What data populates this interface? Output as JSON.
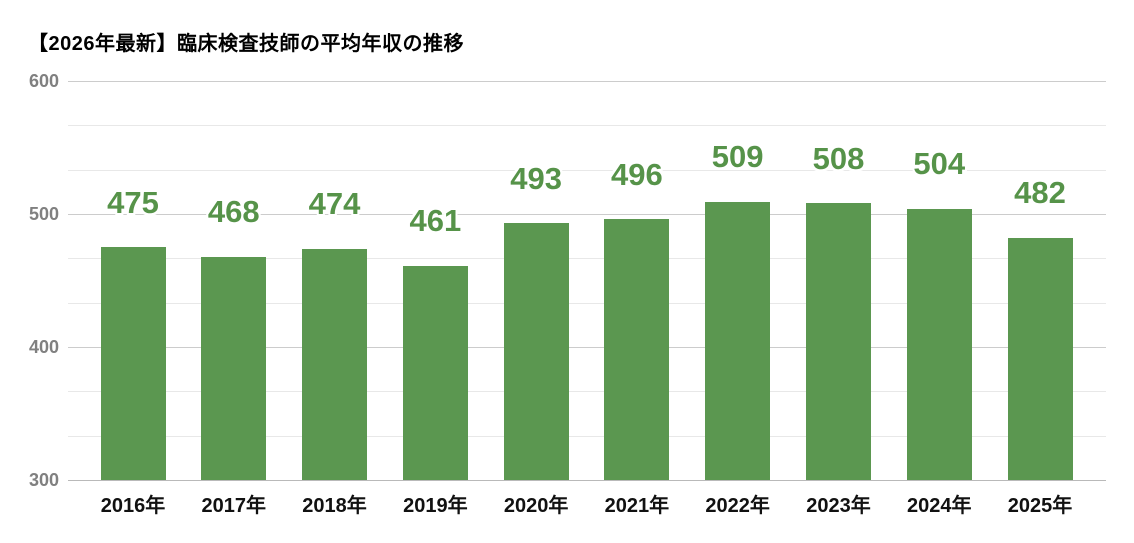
{
  "chart_data": {
    "type": "bar",
    "title": "【2026年最新】臨床検査技師の平均年収の推移",
    "categories": [
      "2016年",
      "2017年",
      "2018年",
      "2019年",
      "2020年",
      "2021年",
      "2022年",
      "2023年",
      "2024年",
      "2025年"
    ],
    "values": [
      475,
      468,
      474,
      461,
      493,
      496,
      509,
      508,
      504,
      482
    ],
    "xlabel": "",
    "ylabel": "",
    "ylim": [
      300,
      600
    ],
    "yticks": [
      300,
      400,
      500,
      600
    ],
    "minor_gridlines_per_major": 2,
    "grid": true,
    "legend": "none",
    "value_labels_shown": true
  },
  "colors": {
    "bar": "#5b9750",
    "value_label": "#569349",
    "title": "#000000",
    "x_tick_label": "#111111",
    "y_tick_label": "#808080",
    "gridline_major": "#cccccc",
    "gridline_minor": "#e8e8e8",
    "baseline": "#b9b9b9",
    "background": "#ffffff"
  }
}
